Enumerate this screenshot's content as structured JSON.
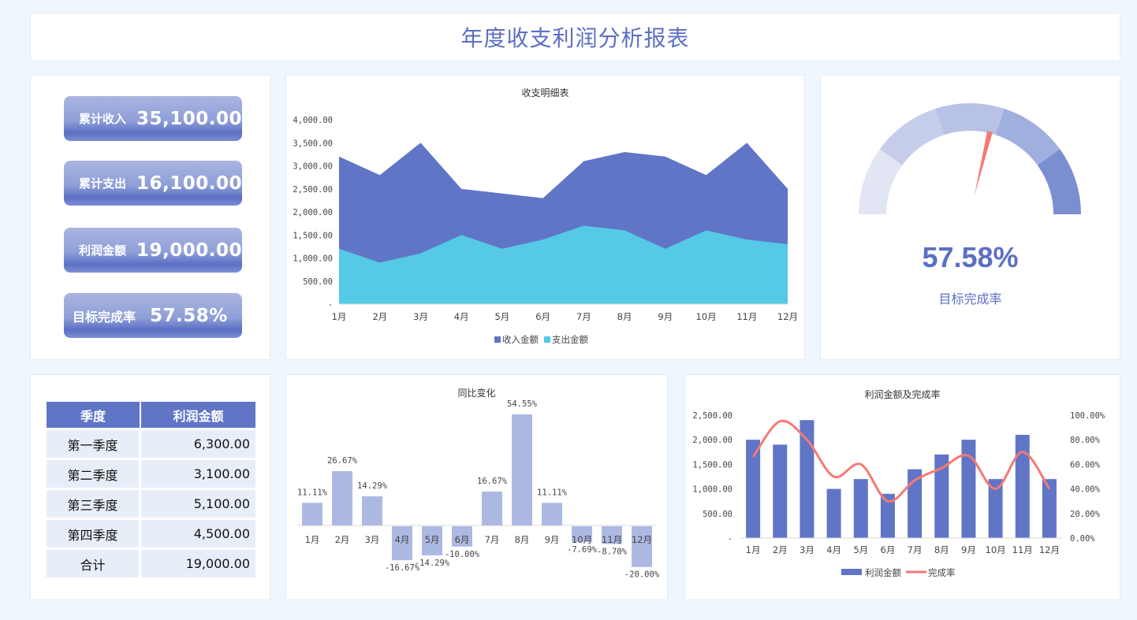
{
  "header": {
    "title": "年度收支利润分析报表"
  },
  "kpis": [
    {
      "label": "累计收入",
      "value": "35,100.00"
    },
    {
      "label": "累计支出",
      "value": "16,100.00"
    },
    {
      "label": "利润金额",
      "value": "19,000.00"
    },
    {
      "label": "目标完成率",
      "value": "57.58%"
    }
  ],
  "gauge": {
    "value": "57.58%",
    "label": "目标完成率",
    "percent": 57.58,
    "segment_colors": [
      "#e1e5f4",
      "#c6cdeb",
      "#b8c2e6",
      "#9fafde",
      "#7b8fd0"
    ],
    "needle_color": "#f47a72"
  },
  "quarter_table": {
    "headers": [
      "季度",
      "利润金额"
    ],
    "rows": [
      {
        "quarter": "第一季度",
        "amount": "6,300.00"
      },
      {
        "quarter": "第二季度",
        "amount": "3,100.00"
      },
      {
        "quarter": "第三季度",
        "amount": "5,100.00"
      },
      {
        "quarter": "第四季度",
        "amount": "4,500.00"
      },
      {
        "quarter": "合计",
        "amount": "19,000.00"
      }
    ]
  },
  "colors": {
    "primary": "#6075c6",
    "expense": "#55c9e5",
    "yoy_bar": "#adb8e3",
    "rate_line": "#f47a72"
  },
  "chart_data": [
    {
      "type": "area",
      "title": "收支明细表",
      "categories": [
        "1月",
        "2月",
        "3月",
        "4月",
        "5月",
        "6月",
        "7月",
        "8月",
        "9月",
        "10月",
        "11月",
        "12月"
      ],
      "series": [
        {
          "name": "收入金额",
          "values": [
            3200,
            2800,
            3500,
            2500,
            2400,
            2300,
            3100,
            3300,
            3200,
            2800,
            3500,
            2500
          ]
        },
        {
          "name": "支出金额",
          "values": [
            1200,
            900,
            1100,
            1500,
            1200,
            1400,
            1700,
            1600,
            1200,
            1600,
            1400,
            1300
          ]
        }
      ],
      "yticks": [
        "-",
        "500.00",
        "1,000.00",
        "1,500.00",
        "2,000.00",
        "2,500.00",
        "3,000.00",
        "3,500.00",
        "4,000.00"
      ],
      "ylim": [
        0,
        4000
      ],
      "legend_position": "bottom"
    },
    {
      "type": "bar",
      "title": "同比变化",
      "categories": [
        "1月",
        "2月",
        "3月",
        "4月",
        "5月",
        "6月",
        "7月",
        "8月",
        "9月",
        "10月",
        "11月",
        "12月"
      ],
      "values": [
        11.11,
        26.67,
        14.29,
        -16.67,
        -14.29,
        -10.0,
        16.67,
        54.55,
        11.11,
        -7.69,
        -8.7,
        -20.0
      ],
      "labels": [
        "11.11%",
        "26.67%",
        "14.29%",
        "-16.67%",
        "-14.29%",
        "-10.00%",
        "16.67%",
        "54.55%",
        "11.11%",
        "-7.69%",
        "-8.70%",
        "-20.00%"
      ]
    },
    {
      "type": "bar",
      "title": "利润金额及完成率",
      "categories": [
        "1月",
        "2月",
        "3月",
        "4月",
        "5月",
        "6月",
        "7月",
        "8月",
        "9月",
        "10月",
        "11月",
        "12月"
      ],
      "series": [
        {
          "name": "利润金额",
          "type": "bar",
          "values": [
            2000,
            1900,
            2400,
            1000,
            1200,
            900,
            1400,
            1700,
            2000,
            1200,
            2100,
            1200
          ]
        },
        {
          "name": "完成率",
          "type": "line",
          "axis": "right",
          "values": [
            66,
            95,
            80,
            50,
            60,
            30,
            47,
            57,
            67,
            40,
            70,
            40
          ]
        }
      ],
      "yticks_left": [
        "-",
        "500.00",
        "1,000.00",
        "1,500.00",
        "2,000.00",
        "2,500.00"
      ],
      "yticks_right": [
        "0.00%",
        "20.00%",
        "40.00%",
        "60.00%",
        "80.00%",
        "100.00%"
      ],
      "ylim_left": [
        0,
        2500
      ],
      "ylim_right": [
        0,
        100
      ],
      "legend_position": "bottom"
    }
  ]
}
